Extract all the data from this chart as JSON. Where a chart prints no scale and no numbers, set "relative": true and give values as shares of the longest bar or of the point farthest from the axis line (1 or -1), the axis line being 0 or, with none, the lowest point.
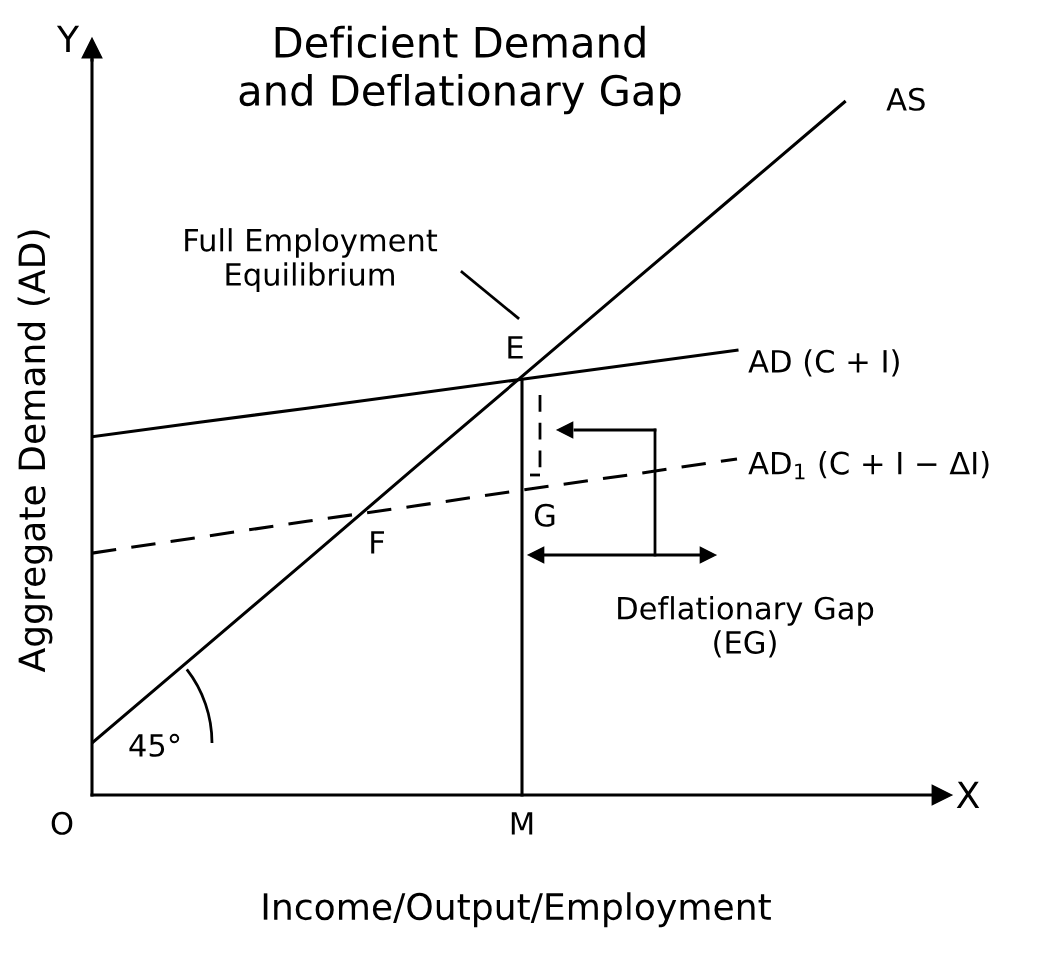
{
  "chart_data": {
    "type": "line",
    "relative": true,
    "title": "Deficient Demand\nand Deflationary Gap",
    "xlabel": "Income/Output/Employment",
    "ylabel": "Aggregate Demand (AD)",
    "categories": [
      null,
      null,
      null,
      null,
      null,
      null,
      null,
      null
    ],
    "series": [
      {
        "name": "AS",
        "color": "#000000",
        "line_style": "solid",
        "values": [
          0.075,
          0.207,
          0.339,
          0.472,
          0.604,
          0.736,
          0.868,
          1.0
        ]
      },
      {
        "name": "AD (C + I)",
        "color": "#000000",
        "line_style": "solid",
        "values": [
          0.517,
          0.538,
          0.558,
          0.579,
          0.6,
          0.621,
          0.642,
          null
        ]
      },
      {
        "name": "AD$_{1}$ (C + I − ΔI)",
        "color": "#000000",
        "line_style": "dashed",
        "values": [
          0.349,
          0.372,
          0.395,
          0.417,
          0.44,
          0.462,
          0.485,
          null
        ]
      }
    ],
    "annotations": [
      "E",
      "G",
      "F",
      "O",
      "M",
      "Full Employment\nEquilibrium",
      "Deflationary Gap\n(EG)",
      "45°",
      "Y",
      "X"
    ],
    "legend": false,
    "marker": "none"
  }
}
